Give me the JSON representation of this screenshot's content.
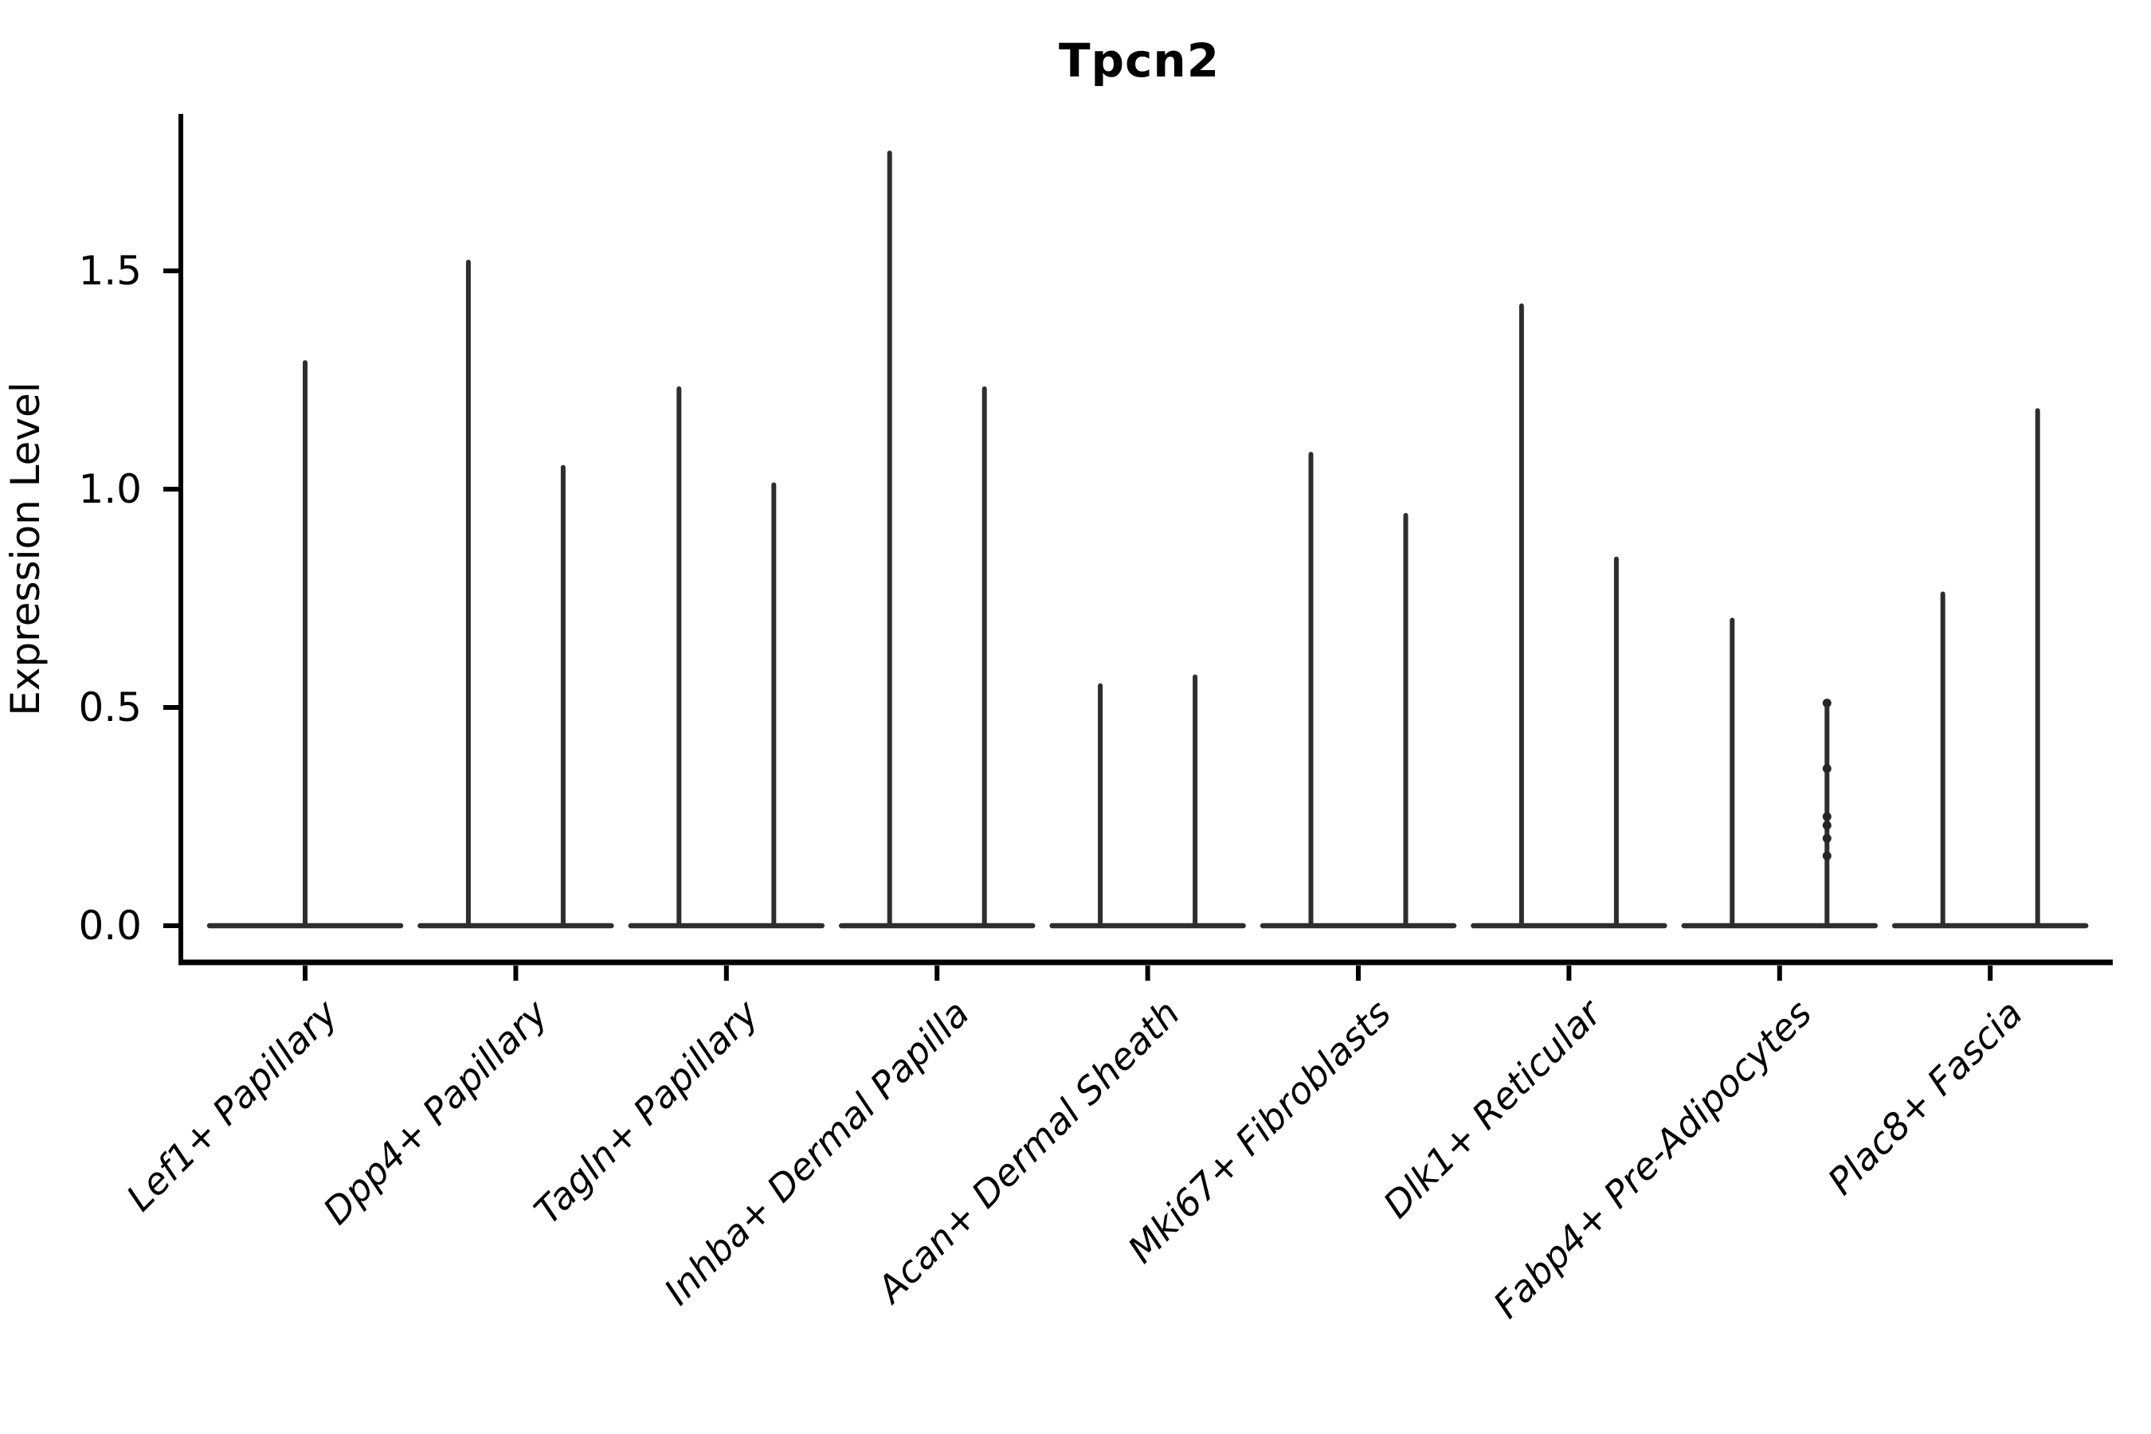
{
  "title": "Tpcn2",
  "y_axis": {
    "label": "Expression Level",
    "tick_labels": [
      "0.0",
      "0.5",
      "1.0",
      "1.5"
    ],
    "tick_values": [
      0.0,
      0.5,
      1.0,
      1.5
    ]
  },
  "colors": {
    "violin": "#2e2e2e",
    "axis": "#000000",
    "point": "#262626"
  },
  "chart_data": {
    "type": "violin",
    "title": "Tpcn2",
    "ylabel": "Expression Level",
    "xlabel": "",
    "ylim": [
      -0.084,
      1.859
    ],
    "grid": false,
    "legend": "none",
    "note": "sparse single-cell expression violins: wide density blob at 0 with a thin spike up to the max expressed value; categories 2-9 contain a pair of violins, category 1 a single centered violin",
    "categories": [
      "Lef1+ Papillary",
      "Dpp4+ Papillary",
      "Tagln+ Papillary",
      "Inhba+ Dermal Papilla",
      "Acan+ Dermal Sheath",
      "Mki67+ Fibroblasts",
      "Dlk1+ Reticular",
      "Fabp4+ Pre-Adipocytes",
      "Plac8+ Fascia"
    ],
    "violins": [
      {
        "category": "Lef1+ Papillary",
        "spikes": [
          {
            "pos": 0,
            "max": 1.29
          }
        ]
      },
      {
        "category": "Dpp4+ Papillary",
        "spikes": [
          {
            "pos": -1,
            "max": 1.52
          },
          {
            "pos": 1,
            "max": 1.05
          }
        ]
      },
      {
        "category": "Tagln+ Papillary",
        "spikes": [
          {
            "pos": -1,
            "max": 1.23
          },
          {
            "pos": 1,
            "max": 1.01
          }
        ]
      },
      {
        "category": "Inhba+ Dermal Papilla",
        "spikes": [
          {
            "pos": -1,
            "max": 1.77
          },
          {
            "pos": 1,
            "max": 1.23
          }
        ]
      },
      {
        "category": "Acan+ Dermal Sheath",
        "spikes": [
          {
            "pos": -1,
            "max": 0.55
          },
          {
            "pos": 1,
            "max": 0.57
          }
        ]
      },
      {
        "category": "Mki67+ Fibroblasts",
        "spikes": [
          {
            "pos": -1,
            "max": 1.08
          },
          {
            "pos": 1,
            "max": 0.94
          }
        ]
      },
      {
        "category": "Dlk1+ Reticular",
        "spikes": [
          {
            "pos": -1,
            "max": 1.42
          },
          {
            "pos": 1,
            "max": 0.84
          }
        ]
      },
      {
        "category": "Fabp4+ Pre-Adipocytes",
        "spikes": [
          {
            "pos": -1,
            "max": 0.7
          },
          {
            "pos": 1,
            "max": 0.51,
            "points": [
              0.51,
              0.36,
              0.25,
              0.23,
              0.2,
              0.16
            ]
          }
        ]
      },
      {
        "category": "Plac8+ Fascia",
        "spikes": [
          {
            "pos": -1,
            "max": 0.76
          },
          {
            "pos": 1,
            "max": 1.18
          }
        ]
      }
    ]
  }
}
